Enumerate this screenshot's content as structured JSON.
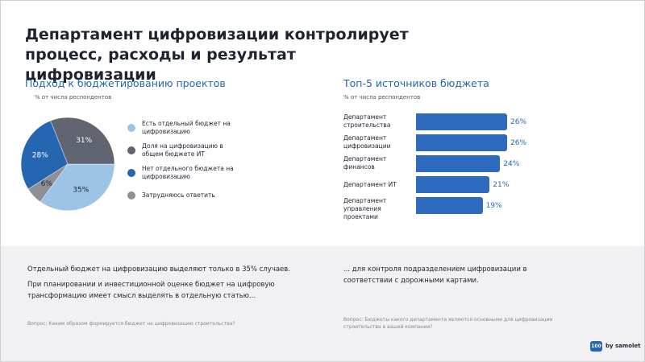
{
  "title": "Департамент цифровизации контролирует процесс, расходы и результат цифровизации",
  "chart_data": [
    {
      "type": "pie",
      "title": "Подход к бюджетированию проектов",
      "subtitle": "% от числа респондентов",
      "categories": [
        "Есть отдельный бюджет на цифровизацию",
        "Доля на цифровизацию в общем бюджете ИТ",
        "Нет отдельного бюджета на цифровизацию",
        "Затрудняюсь ответить"
      ],
      "values": [
        35,
        31,
        28,
        6
      ],
      "value_labels": [
        "35%",
        "31%",
        "28%",
        "6%"
      ],
      "colors": [
        "#9dc3e6",
        "#5f6470",
        "#2566b0",
        "#8e9096"
      ]
    },
    {
      "type": "bar",
      "orientation": "horizontal",
      "title": "Топ-5 источников бюджета",
      "subtitle": "% от числа респондентов",
      "categories": [
        "Департамент строительства",
        "Департамент цифровизации",
        "Департамент финансов",
        "Департамент ИТ",
        "Департамент управления проектами"
      ],
      "values": [
        26,
        26,
        24,
        21,
        19
      ],
      "value_labels": [
        "26%",
        "26%",
        "24%",
        "21%",
        "19%"
      ],
      "color": "#2e6bbf"
    }
  ],
  "notes_left": [
    "Отдельный бюджет на цифровизацию выделяют только в 35% случаев.",
    "При планировании и инвестиционной оценке бюджет на цифровую трансформацию имеет смысл выделять в отдельную статью..."
  ],
  "question_left": "Вопрос: Каким образом формируется бюджет на цифровизацию строительства?",
  "notes_right": [
    "... для контроля подразделением цифровизации в соответствии с дорожными картами."
  ],
  "question_right": "Вопрос: Бюджеты какого департамента являются основными для цифровизации строительства в вашей компании?",
  "logo": {
    "badge": "100",
    "text": "by samolet"
  }
}
